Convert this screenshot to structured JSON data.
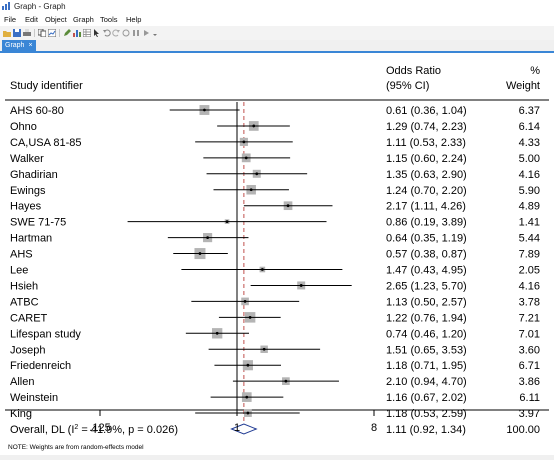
{
  "window": {
    "title": "Graph - Graph"
  },
  "menu": [
    "File",
    "Edit",
    "Object",
    "Graph",
    "Tools",
    "Help"
  ],
  "tab": {
    "label": "Graph",
    "close": "×"
  },
  "chart_data": {
    "type": "forest",
    "headers": {
      "study": "Study identifier",
      "or_line1": "Odds Ratio",
      "or_line2": "(95% CI)",
      "weight_line1": "%",
      "weight_line2": "Weight"
    },
    "x_scale": "log",
    "xlim": [
      0.125,
      8
    ],
    "x_ticks": [
      {
        "value": 0.125,
        "label": ".125"
      },
      {
        "value": 1,
        "label": "1"
      },
      {
        "value": 8,
        "label": "8"
      }
    ],
    "studies": [
      {
        "name": "AHS 60-80",
        "or": 0.61,
        "lo": 0.36,
        "hi": 1.04,
        "ci_text": "0.61 (0.36, 1.04)",
        "weight": "6.37"
      },
      {
        "name": "Ohno",
        "or": 1.29,
        "lo": 0.74,
        "hi": 2.23,
        "ci_text": "1.29 (0.74, 2.23)",
        "weight": "6.14"
      },
      {
        "name": "CA,USA 81-85",
        "or": 1.11,
        "lo": 0.53,
        "hi": 2.33,
        "ci_text": "1.11 (0.53, 2.33)",
        "weight": "4.33"
      },
      {
        "name": "Walker",
        "or": 1.15,
        "lo": 0.6,
        "hi": 2.24,
        "ci_text": "1.15 (0.60, 2.24)",
        "weight": "5.00"
      },
      {
        "name": "Ghadirian",
        "or": 1.35,
        "lo": 0.63,
        "hi": 2.9,
        "ci_text": "1.35 (0.63, 2.90)",
        "weight": "4.16"
      },
      {
        "name": "Ewings",
        "or": 1.24,
        "lo": 0.7,
        "hi": 2.2,
        "ci_text": "1.24 (0.70, 2.20)",
        "weight": "5.90"
      },
      {
        "name": "Hayes",
        "or": 2.17,
        "lo": 1.11,
        "hi": 4.26,
        "ci_text": "2.17 (1.11, 4.26)",
        "weight": "4.89"
      },
      {
        "name": "SWE 71-75",
        "or": 0.86,
        "lo": 0.19,
        "hi": 3.89,
        "ci_text": "0.86 (0.19, 3.89)",
        "weight": "1.41"
      },
      {
        "name": "Hartman",
        "or": 0.64,
        "lo": 0.35,
        "hi": 1.19,
        "ci_text": "0.64 (0.35, 1.19)",
        "weight": "5.44"
      },
      {
        "name": "AHS",
        "or": 0.57,
        "lo": 0.38,
        "hi": 0.87,
        "ci_text": "0.57 (0.38, 0.87)",
        "weight": "7.89"
      },
      {
        "name": "Lee",
        "or": 1.47,
        "lo": 0.43,
        "hi": 4.95,
        "ci_text": "1.47 (0.43, 4.95)",
        "weight": "2.05"
      },
      {
        "name": "Hsieh",
        "or": 2.65,
        "lo": 1.23,
        "hi": 5.7,
        "ci_text": "2.65 (1.23, 5.70)",
        "weight": "4.16"
      },
      {
        "name": "ATBC",
        "or": 1.13,
        "lo": 0.5,
        "hi": 2.57,
        "ci_text": "1.13 (0.50, 2.57)",
        "weight": "3.78"
      },
      {
        "name": "CARET",
        "or": 1.22,
        "lo": 0.76,
        "hi": 1.94,
        "ci_text": "1.22 (0.76, 1.94)",
        "weight": "7.21"
      },
      {
        "name": "Lifespan study",
        "or": 0.74,
        "lo": 0.46,
        "hi": 1.2,
        "ci_text": "0.74 (0.46, 1.20)",
        "weight": "7.01"
      },
      {
        "name": "Joseph",
        "or": 1.51,
        "lo": 0.65,
        "hi": 3.53,
        "ci_text": "1.51 (0.65, 3.53)",
        "weight": "3.60"
      },
      {
        "name": "Friedenreich",
        "or": 1.18,
        "lo": 0.71,
        "hi": 1.95,
        "ci_text": "1.18 (0.71, 1.95)",
        "weight": "6.71"
      },
      {
        "name": "Allen",
        "or": 2.1,
        "lo": 0.94,
        "hi": 4.7,
        "ci_text": "2.10 (0.94, 4.70)",
        "weight": "3.86"
      },
      {
        "name": "Weinstein",
        "or": 1.16,
        "lo": 0.67,
        "hi": 2.02,
        "ci_text": "1.16 (0.67, 2.02)",
        "weight": "6.11"
      },
      {
        "name": "King",
        "or": 1.18,
        "lo": 0.53,
        "hi": 2.59,
        "ci_text": "1.18 (0.53, 2.59)",
        "weight": "3.97"
      }
    ],
    "overall": {
      "label_prefix": "Overall, DL (I",
      "label_sup": "2",
      "label_suffix": " = 41.9%, p = 0.026)",
      "or": 1.11,
      "lo": 0.92,
      "hi": 1.34,
      "ci_text": "1.11 (0.92, 1.34)",
      "weight": "100.00"
    },
    "note": "NOTE: Weights are from random-effects model",
    "colors": {
      "box": "#b4b4b4",
      "ci_line": "#000000",
      "null_line": "#000000",
      "overall_line": "#c0504d",
      "diamond": "#1f3a93"
    }
  }
}
